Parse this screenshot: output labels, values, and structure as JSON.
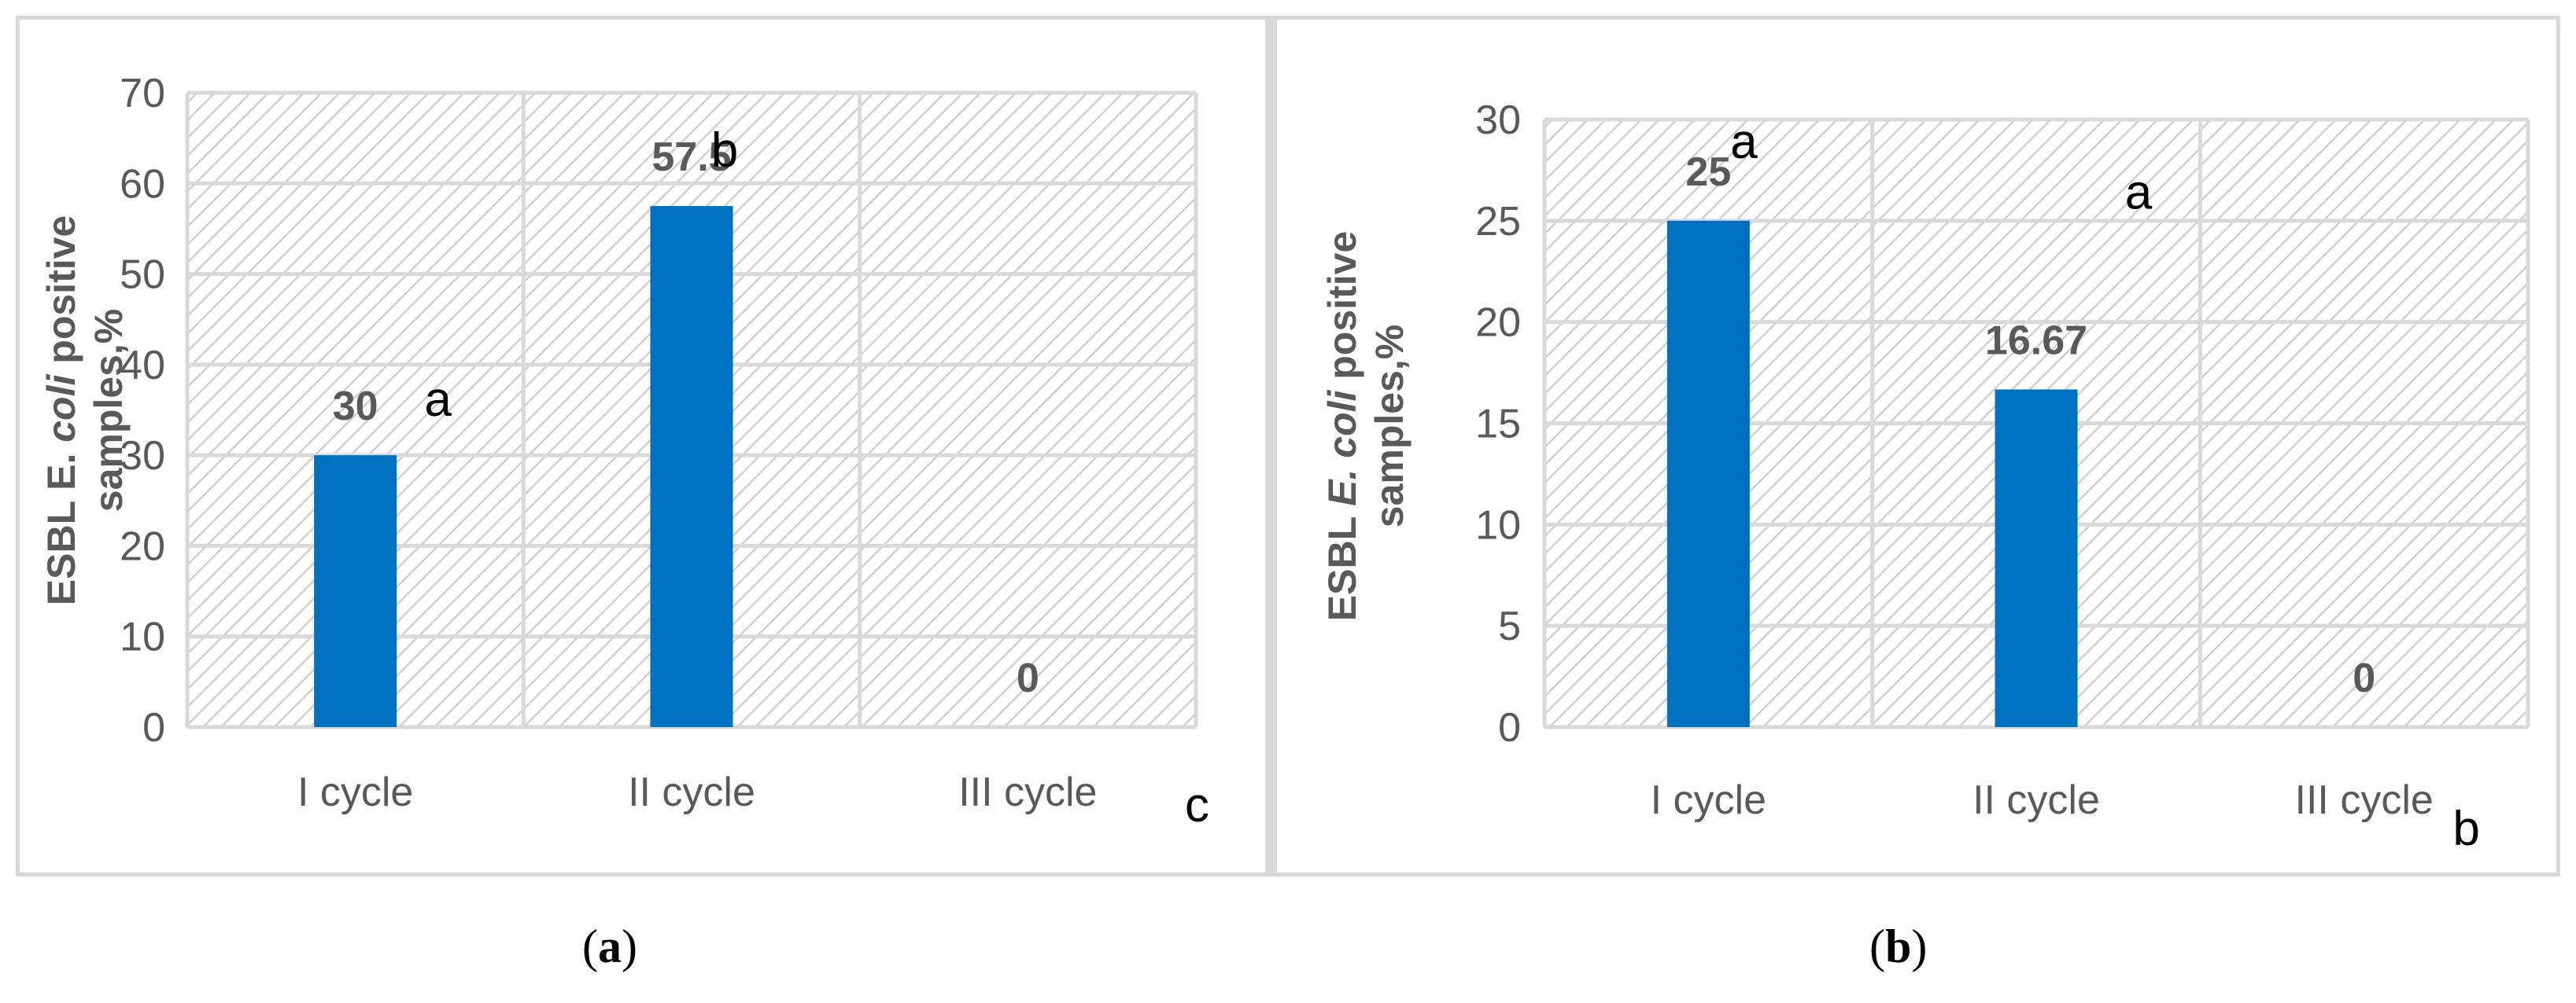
{
  "chart_data": [
    {
      "type": "bar",
      "panel": "a",
      "categories": [
        "I cycle",
        "II cycle",
        "III cycle"
      ],
      "values": [
        30,
        57.5,
        0
      ],
      "data_labels": [
        "30",
        "57.5",
        "0"
      ],
      "significance": [
        "a",
        "b",
        "c"
      ],
      "ylabel_parts": [
        "ESBL E. coli positive",
        "samples,%"
      ],
      "yticks": [
        "0",
        "10",
        "20",
        "30",
        "40",
        "50",
        "60",
        "70"
      ],
      "ylim": [
        0,
        70
      ],
      "grid": true,
      "bar_color": "#0070c0"
    },
    {
      "type": "bar",
      "panel": "b",
      "categories": [
        "I cycle",
        "II cycle",
        "III cycle"
      ],
      "values": [
        25,
        16.67,
        0
      ],
      "data_labels": [
        "25",
        "16.67",
        "0"
      ],
      "significance": [
        "a",
        "a",
        "b"
      ],
      "ylabel_parts": [
        "ESBL ",
        "E. coli",
        " positive",
        "samples,%"
      ],
      "yticks": [
        "0",
        "5",
        "10",
        "15",
        "20",
        "25",
        "30"
      ],
      "ylim": [
        0,
        30
      ],
      "grid": true,
      "bar_color": "#0070c0"
    }
  ],
  "captions": [
    {
      "open": "(",
      "letter": "a",
      "close": ")"
    },
    {
      "open": "(",
      "letter": "b",
      "close": ")"
    }
  ],
  "colors": {
    "axis_text": "#595959",
    "grid": "#d9d9d9",
    "hatch": "#dcdcdc",
    "border": "#d9d9d9"
  }
}
